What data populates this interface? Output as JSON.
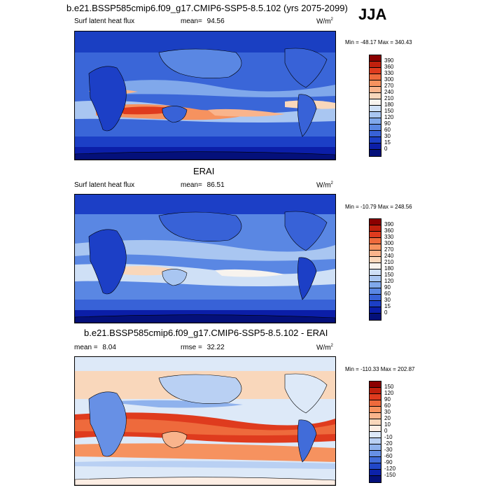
{
  "season": "JJA",
  "panels": [
    {
      "title": "b.e21.BSSP585cmip6.f09_g17.CMIP6-SSP5-8.5.102 (yrs 2075-2099)",
      "left_label": "Surf latent heat flux",
      "stat1_label": "mean=",
      "stat1_value": "94.56",
      "stat2_label": "",
      "stat2_value": "",
      "units": "W/m",
      "units_sup": "2",
      "minmax": "Min = -48.17 Max = 340.43"
    },
    {
      "title": "ERAI",
      "left_label": "Surf latent heat flux",
      "stat1_label": "mean=",
      "stat1_value": "86.51",
      "stat2_label": "",
      "stat2_value": "",
      "units": "W/m",
      "units_sup": "2",
      "minmax": "Min = -10.79 Max = 248.56"
    },
    {
      "title": "b.e21.BSSP585cmip6.f09_g17.CMIP6-SSP5-8.5.102 - ERAI",
      "left_label": "",
      "stat1_label": "mean =",
      "stat1_value": "8.04",
      "stat2_label": "rmse =",
      "stat2_value": "32.22",
      "units": "W/m",
      "units_sup": "2",
      "minmax": "Min = -110.33 Max = 202.87"
    }
  ],
  "chart_data": [
    {
      "type": "heatmap",
      "title": "b.e21.BSSP585cmip6.f09_g17.CMIP6-SSP5-8.5.102 (yrs 2075-2099)",
      "variable": "Surf latent heat flux",
      "units": "W/m2",
      "mean": 94.56,
      "min": -48.17,
      "max": 340.43,
      "colorbar_levels": [
        "390",
        "360",
        "330",
        "300",
        "270",
        "240",
        "210",
        "180",
        "150",
        "120",
        "90",
        "60",
        "30",
        "15",
        "0"
      ],
      "colorbar_colors": [
        "#8b0000",
        "#c0200d",
        "#df3b1e",
        "#ee6a3c",
        "#f6925f",
        "#f9b48c",
        "#f9d7bb",
        "#f7f3ee",
        "#cfe0f6",
        "#a9c6f1",
        "#80a8eb",
        "#5a87e3",
        "#3862d7",
        "#1c3fc6",
        "#0b1ea8",
        "#04107a"
      ]
    },
    {
      "type": "heatmap",
      "title": "ERAI",
      "variable": "Surf latent heat flux",
      "units": "W/m2",
      "mean": 86.51,
      "min": -10.79,
      "max": 248.56,
      "colorbar_levels": [
        "390",
        "360",
        "330",
        "300",
        "270",
        "240",
        "210",
        "180",
        "150",
        "120",
        "90",
        "60",
        "30",
        "15",
        "0"
      ],
      "colorbar_colors": [
        "#8b0000",
        "#c0200d",
        "#df3b1e",
        "#ee6a3c",
        "#f6925f",
        "#f9b48c",
        "#f9d7bb",
        "#f7f3ee",
        "#cfe0f6",
        "#a9c6f1",
        "#80a8eb",
        "#5a87e3",
        "#3862d7",
        "#1c3fc6",
        "#0b1ea8",
        "#04107a"
      ]
    },
    {
      "type": "heatmap",
      "title": "b.e21.BSSP585cmip6.f09_g17.CMIP6-SSP5-8.5.102 - ERAI",
      "units": "W/m2",
      "mean": 8.04,
      "rmse": 32.22,
      "min": -110.33,
      "max": 202.87,
      "colorbar_levels": [
        "150",
        "120",
        "90",
        "60",
        "30",
        "20",
        "10",
        "0",
        "-10",
        "-20",
        "-30",
        "-60",
        "-90",
        "-120",
        "-150"
      ],
      "colorbar_colors": [
        "#8b0000",
        "#c0200d",
        "#df3b1e",
        "#ee6a3c",
        "#f6925f",
        "#f9b48c",
        "#f9d7bb",
        "#fdeee4",
        "#dde9f8",
        "#b9d0f3",
        "#8fb2ed",
        "#6790e5",
        "#416cd9",
        "#2147c8",
        "#0c22aa",
        "#04107a"
      ]
    }
  ]
}
